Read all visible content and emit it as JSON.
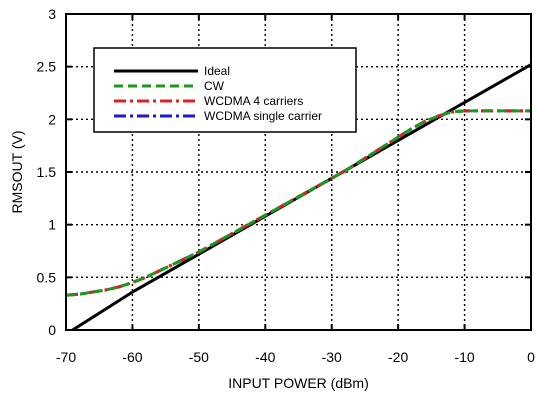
{
  "chart_data": {
    "type": "line",
    "title": "",
    "xlabel": "INPUT POWER (dBm)",
    "ylabel": "RMSOUT (V)",
    "xlim": [
      -70,
      0
    ],
    "ylim": [
      0,
      3
    ],
    "x_ticks": [
      "-70",
      "-60",
      "-50",
      "-40",
      "-30",
      "-20",
      "-10",
      "0"
    ],
    "y_ticks": [
      "0",
      "0.5",
      "1",
      "1.5",
      "2",
      "2.5",
      "3"
    ],
    "grid": "dotted",
    "legend_position": "top-left",
    "series": [
      {
        "name": "Ideal",
        "color": "#000000",
        "style": "solid",
        "x": [
          -70,
          -69,
          -60,
          -50,
          -40,
          -30,
          -20,
          -10,
          0
        ],
        "y": [
          -0.04,
          0,
          0.36,
          0.72,
          1.08,
          1.44,
          1.8,
          2.16,
          2.52
        ]
      },
      {
        "name": "CW",
        "color": "#1a9a1a",
        "style": "dashed",
        "x": [
          -70,
          -68,
          -66,
          -64,
          -62,
          -60,
          -58,
          -56,
          -54,
          -52,
          -50,
          -48,
          -46,
          -44,
          -42,
          -40,
          -38,
          -36,
          -34,
          -32,
          -30,
          -28,
          -26,
          -24,
          -22,
          -20,
          -18,
          -16,
          -14,
          -12,
          -10,
          -8,
          -6,
          -4,
          -2,
          0
        ],
        "y": [
          0.33,
          0.34,
          0.36,
          0.38,
          0.41,
          0.45,
          0.5,
          0.56,
          0.62,
          0.68,
          0.74,
          0.81,
          0.88,
          0.95,
          1.02,
          1.09,
          1.16,
          1.23,
          1.3,
          1.37,
          1.44,
          1.51,
          1.59,
          1.67,
          1.75,
          1.83,
          1.91,
          1.98,
          2.03,
          2.07,
          2.08,
          2.08,
          2.08,
          2.08,
          2.08,
          2.08
        ]
      },
      {
        "name": "WCDMA 4 carriers",
        "color": "#e02020",
        "style": "dash-dot",
        "x": [
          -70,
          -68,
          -66,
          -64,
          -62,
          -60,
          -58,
          -56,
          -54,
          -52,
          -50,
          -48,
          -46,
          -44,
          -42,
          -40,
          -38,
          -36,
          -34,
          -32,
          -30,
          -28,
          -26,
          -24,
          -22,
          -20,
          -18,
          -16,
          -14,
          -12,
          -10,
          -8,
          -6,
          -4,
          -2,
          0
        ],
        "y": [
          0.33,
          0.34,
          0.36,
          0.38,
          0.41,
          0.45,
          0.5,
          0.56,
          0.62,
          0.68,
          0.74,
          0.81,
          0.88,
          0.95,
          1.02,
          1.09,
          1.16,
          1.23,
          1.3,
          1.37,
          1.44,
          1.51,
          1.59,
          1.67,
          1.75,
          1.83,
          1.91,
          1.98,
          2.03,
          2.07,
          2.08,
          2.08,
          2.08,
          2.08,
          2.08,
          2.08
        ]
      },
      {
        "name": "WCDMA single carrier",
        "color": "#1a1ad0",
        "style": "dash-dot",
        "x": [
          -70,
          -68,
          -66,
          -64,
          -62,
          -60,
          -58,
          -56,
          -54,
          -52,
          -50,
          -48,
          -46,
          -44,
          -42,
          -40,
          -38,
          -36,
          -34,
          -32,
          -30,
          -28,
          -26,
          -24,
          -22,
          -20,
          -18,
          -16,
          -14,
          -12,
          -10,
          -8,
          -6,
          -4,
          -2,
          0
        ],
        "y": [
          0.33,
          0.34,
          0.36,
          0.38,
          0.41,
          0.45,
          0.5,
          0.56,
          0.62,
          0.68,
          0.74,
          0.81,
          0.88,
          0.95,
          1.02,
          1.09,
          1.16,
          1.23,
          1.3,
          1.37,
          1.44,
          1.51,
          1.59,
          1.67,
          1.75,
          1.83,
          1.91,
          1.98,
          2.03,
          2.07,
          2.08,
          2.08,
          2.08,
          2.08,
          2.08,
          2.08
        ]
      }
    ]
  }
}
